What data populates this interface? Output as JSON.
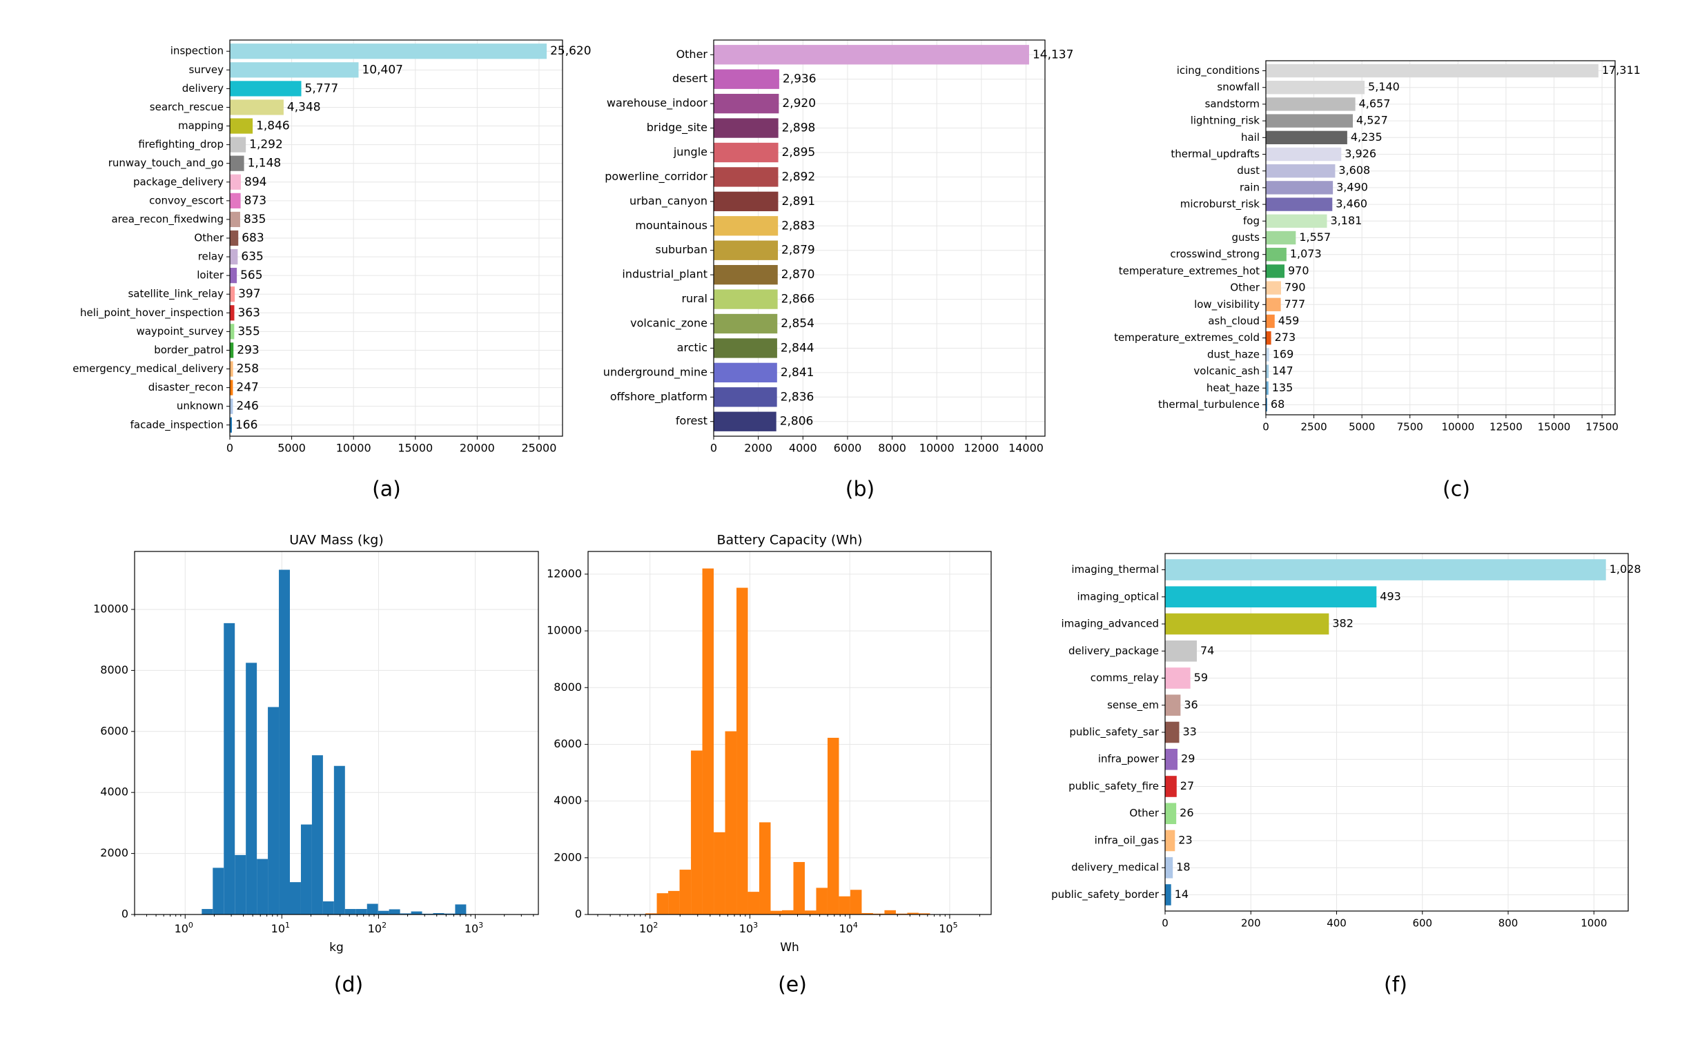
{
  "colors": {
    "tab20": [
      "#1f77b4",
      "#aec7e8",
      "#ff7f0e",
      "#ffbb78",
      "#2ca02c",
      "#98df8a",
      "#d62728",
      "#ff9896",
      "#9467bd",
      "#c5b0d5",
      "#8c564b",
      "#c49c94",
      "#e377c2",
      "#f7b6d2",
      "#7f7f7f",
      "#c7c7c7",
      "#bcbd22",
      "#dbdb8d",
      "#17becf",
      "#9edae5"
    ],
    "hist_d": "#1f77b4",
    "hist_e": "#ff7f0e",
    "grid": "#e6e6e6"
  },
  "chart_data": [
    {
      "id": "a",
      "panel_label": "(a)",
      "type": "bar",
      "orientation": "horizontal",
      "title": "",
      "xticks": [
        0,
        5000,
        10000,
        15000,
        20000,
        25000
      ],
      "xlim": [
        0,
        26900
      ],
      "categories": [
        "inspection",
        "survey",
        "delivery",
        "search_rescue",
        "mapping",
        "firefighting_drop",
        "runway_touch_and_go",
        "package_delivery",
        "convoy_escort",
        "area_recon_fixedwing",
        "Other",
        "relay",
        "loiter",
        "satellite_link_relay",
        "heli_point_hover_inspection",
        "waypoint_survey",
        "border_patrol",
        "emergency_medical_delivery",
        "disaster_recon",
        "unknown",
        "facade_inspection"
      ],
      "values": [
        25620,
        10407,
        5777,
        4348,
        1846,
        1292,
        1148,
        894,
        873,
        835,
        683,
        635,
        565,
        397,
        363,
        355,
        293,
        258,
        247,
        246,
        166
      ],
      "value_labels": [
        "25,620",
        "10,407",
        "5,777",
        "4,348",
        "1,846",
        "1,292",
        "1,148",
        "894",
        "873",
        "835",
        "683",
        "635",
        "565",
        "397",
        "363",
        "355",
        "293",
        "258",
        "247",
        "246",
        "166"
      ],
      "bar_colors": [
        "#9edae5",
        "#9edae5",
        "#17becf",
        "#dbdb8d",
        "#bcbd22",
        "#c7c7c7",
        "#7f7f7f",
        "#f7b6d2",
        "#e377c2",
        "#c49c94",
        "#8c564b",
        "#c5b0d5",
        "#9467bd",
        "#ff9896",
        "#d62728",
        "#98df8a",
        "#2ca02c",
        "#ffbb78",
        "#ff7f0e",
        "#aec7e8",
        "#1f77b4"
      ]
    },
    {
      "id": "b",
      "panel_label": "(b)",
      "type": "bar",
      "orientation": "horizontal",
      "title": "",
      "xticks": [
        0,
        2000,
        4000,
        6000,
        8000,
        10000,
        12000,
        14000
      ],
      "xlim": [
        0,
        14850
      ],
      "categories": [
        "Other",
        "desert",
        "warehouse_indoor",
        "bridge_site",
        "jungle",
        "powerline_corridor",
        "urban_canyon",
        "mountainous",
        "suburban",
        "industrial_plant",
        "rural",
        "volcanic_zone",
        "arctic",
        "underground_mine",
        "offshore_platform",
        "forest"
      ],
      "values": [
        14137,
        2936,
        2920,
        2898,
        2895,
        2892,
        2891,
        2883,
        2879,
        2870,
        2866,
        2854,
        2844,
        2841,
        2836,
        2806
      ],
      "value_labels": [
        "14,137",
        "2,936",
        "2,920",
        "2,898",
        "2,895",
        "2,892",
        "2,891",
        "2,883",
        "2,879",
        "2,870",
        "2,866",
        "2,854",
        "2,844",
        "2,841",
        "2,836",
        "2,806"
      ],
      "bar_colors": [
        "#d6a0d6",
        "#c061b9",
        "#9c4a8f",
        "#7b3669",
        "#d6616b",
        "#ad494a",
        "#843c39",
        "#e7ba52",
        "#bd9e39",
        "#8c6d31",
        "#b5cf6b",
        "#8ca252",
        "#637939",
        "#6b6ecf",
        "#5254a3",
        "#393b79"
      ]
    },
    {
      "id": "c",
      "panel_label": "(c)",
      "type": "bar",
      "orientation": "horizontal",
      "title": "",
      "xticks": [
        0,
        2500,
        5000,
        7500,
        10000,
        12500,
        15000,
        17500
      ],
      "xlim": [
        0,
        18180
      ],
      "categories": [
        "icing_conditions",
        "snowfall",
        "sandstorm",
        "lightning_risk",
        "hail",
        "thermal_updrafts",
        "dust",
        "rain",
        "microburst_risk",
        "fog",
        "gusts",
        "crosswind_strong",
        "temperature_extremes_hot",
        "Other",
        "low_visibility",
        "ash_cloud",
        "temperature_extremes_cold",
        "dust_haze",
        "volcanic_ash",
        "heat_haze",
        "thermal_turbulence"
      ],
      "values": [
        17311,
        5140,
        4657,
        4527,
        4235,
        3926,
        3608,
        3490,
        3460,
        3181,
        1557,
        1073,
        970,
        790,
        777,
        459,
        273,
        169,
        147,
        135,
        68
      ],
      "value_labels": [
        "17,311",
        "5,140",
        "4,657",
        "4,527",
        "4,235",
        "3,926",
        "3,608",
        "3,490",
        "3,460",
        "3,181",
        "1,557",
        "1,073",
        "970",
        "790",
        "777",
        "459",
        "273",
        "169",
        "147",
        "135",
        "68"
      ],
      "bar_colors": [
        "#d9d9d9",
        "#d9d9d9",
        "#bdbdbd",
        "#969696",
        "#636363",
        "#dadaeb",
        "#bcbddc",
        "#9e9ac8",
        "#756bb1",
        "#c7e9c0",
        "#a1d99b",
        "#74c476",
        "#31a354",
        "#fdd0a2",
        "#fdae6b",
        "#fd8d3c",
        "#e6550d",
        "#c6dbef",
        "#9ecae1",
        "#6baed6",
        "#3182bd"
      ]
    },
    {
      "id": "d",
      "panel_label": "(d)",
      "type": "histogram",
      "title": "UAV Mass (kg)",
      "xlabel": "kg",
      "xscale": "log",
      "xlim": [
        0.3,
        4500
      ],
      "ylim": [
        0,
        11900
      ],
      "yticks": [
        0,
        2000,
        4000,
        6000,
        8000,
        10000
      ],
      "xticks": [
        {
          "value": 1,
          "base": "10",
          "exp": "0"
        },
        {
          "value": 10,
          "base": "10",
          "exp": "1"
        },
        {
          "value": 100,
          "base": "10",
          "exp": "2"
        },
        {
          "value": 1000,
          "base": "10",
          "exp": "3"
        }
      ],
      "bin_start": 0.4,
      "bin_ratio": 1.3,
      "counts": [
        0,
        0,
        0,
        0,
        0,
        180,
        1530,
        9550,
        1950,
        8250,
        1820,
        6800,
        11300,
        1060,
        2950,
        5220,
        430,
        4870,
        180,
        180,
        350,
        120,
        170,
        35,
        100,
        25,
        45,
        30,
        330,
        10
      ]
    },
    {
      "id": "e",
      "panel_label": "(e)",
      "type": "histogram",
      "title": "Battery Capacity (Wh)",
      "xlabel": "Wh",
      "xscale": "log",
      "xlim": [
        24,
        260000
      ],
      "ylim": [
        0,
        12800
      ],
      "yticks": [
        0,
        2000,
        4000,
        6000,
        8000,
        10000,
        12000
      ],
      "xticks": [
        {
          "value": 100,
          "base": "10",
          "exp": "2"
        },
        {
          "value": 1000,
          "base": "10",
          "exp": "3"
        },
        {
          "value": 10000,
          "base": "10",
          "exp": "4"
        },
        {
          "value": 100000,
          "base": "10",
          "exp": "5"
        }
      ],
      "bin_start": 90,
      "bin_ratio": 1.3,
      "counts": [
        40,
        750,
        830,
        1580,
        5780,
        12200,
        2900,
        6460,
        11520,
        800,
        3250,
        130,
        150,
        1850,
        140,
        940,
        6230,
        640,
        870,
        50,
        30,
        150,
        30,
        60,
        40
      ]
    },
    {
      "id": "f",
      "panel_label": "(f)",
      "type": "bar",
      "orientation": "horizontal",
      "title": "",
      "xticks": [
        0,
        200,
        400,
        600,
        800,
        1000
      ],
      "xlim": [
        0,
        1080
      ],
      "categories": [
        "imaging_thermal",
        "imaging_optical",
        "imaging_advanced",
        "delivery_package",
        "comms_relay",
        "sense_em",
        "public_safety_sar",
        "infra_power",
        "public_safety_fire",
        "Other",
        "infra_oil_gas",
        "delivery_medical",
        "public_safety_border"
      ],
      "values": [
        1028,
        493,
        382,
        74,
        59,
        36,
        33,
        29,
        27,
        26,
        23,
        18,
        14
      ],
      "value_labels": [
        "1,028",
        "493",
        "382",
        "74",
        "59",
        "36",
        "33",
        "29",
        "27",
        "26",
        "23",
        "18",
        "14"
      ],
      "bar_colors": [
        "#9edae5",
        "#17becf",
        "#bcbd22",
        "#c7c7c7",
        "#f7b6d2",
        "#c49c94",
        "#8c564b",
        "#9467bd",
        "#d62728",
        "#98df8a",
        "#ffbb78",
        "#aec7e8",
        "#1f77b4"
      ]
    }
  ]
}
